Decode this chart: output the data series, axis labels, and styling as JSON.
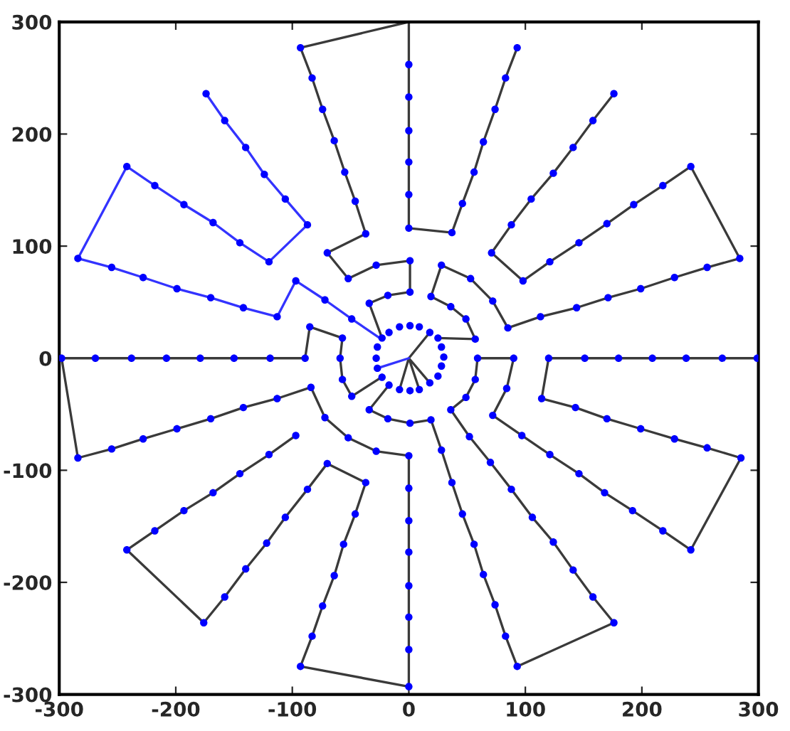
{
  "chart_data": {
    "type": "line",
    "xlim": [
      -300,
      300
    ],
    "ylim": [
      -300,
      300
    ],
    "xticks": [
      -300,
      -200,
      -100,
      0,
      100,
      200,
      300
    ],
    "yticks": [
      -300,
      -200,
      -100,
      0,
      100,
      200,
      300
    ],
    "grid": false,
    "line_style": "solid",
    "series": [
      {
        "type": "line",
        "color": "#3a3a3a",
        "marker": "none",
        "x": [
          93,
          83,
          74,
          64,
          56,
          46,
          37,
          0,
          0,
          0,
          0,
          0,
          0,
          0,
          -93,
          -83,
          -74,
          -64,
          -55,
          -46,
          -37,
          -70,
          -52,
          -28,
          1,
          1,
          -18,
          -34,
          -23
        ],
        "values": [
          277,
          250,
          222,
          193,
          166,
          138,
          112,
          116,
          146,
          175,
          203,
          233,
          262,
          300,
          277,
          250,
          222,
          194,
          166,
          140,
          111,
          94,
          71,
          83,
          87,
          59,
          56,
          49,
          18
        ]
      },
      {
        "type": "line",
        "color": "#3333ff",
        "marker": "none",
        "x": [
          -174,
          -158,
          -140,
          -124,
          -106,
          -87,
          -120,
          -145,
          -168,
          -193,
          -218,
          -242,
          -284,
          -255,
          -228,
          -199,
          -170,
          -142,
          -113,
          -97,
          -72,
          -49,
          -25
        ],
        "values": [
          236,
          212,
          188,
          164,
          142,
          119,
          86,
          103,
          121,
          137,
          154,
          171,
          89,
          81,
          72,
          62,
          54,
          45,
          37,
          69,
          52,
          35,
          18
        ]
      },
      {
        "type": "line",
        "color": "#3a3a3a",
        "marker": "none",
        "x": [
          176,
          158,
          141,
          124,
          105,
          88,
          71,
          98,
          121,
          146,
          170,
          193,
          218,
          242,
          284,
          256,
          228,
          199,
          171,
          144,
          113,
          85,
          72,
          53,
          28,
          19,
          36,
          49,
          57,
          25
        ],
        "values": [
          236,
          212,
          188,
          165,
          142,
          119,
          94,
          69,
          86,
          103,
          120,
          137,
          154,
          171,
          89,
          81,
          72,
          62,
          54,
          45,
          37,
          27,
          51,
          71,
          83,
          55,
          46,
          35,
          17,
          18
        ]
      },
      {
        "type": "line",
        "color": "#3a3a3a",
        "marker": "none",
        "x": [
          299,
          269,
          238,
          209,
          180,
          151,
          120,
          114,
          143,
          170,
          199,
          228,
          256,
          285,
          242,
          218,
          192,
          168,
          146,
          121,
          97,
          72,
          84,
          90,
          59,
          57,
          49,
          36,
          52,
          70,
          88,
          106,
          124,
          141,
          158,
          176,
          93,
          83,
          74,
          64,
          56,
          46,
          37,
          28,
          19,
          1,
          -18,
          -34,
          -17
        ],
        "values": [
          0,
          0,
          0,
          0,
          0,
          0,
          0,
          -36,
          -44,
          -54,
          -63,
          -72,
          -80,
          -89,
          -171,
          -154,
          -136,
          -120,
          -103,
          -86,
          -69,
          -51,
          -27,
          0,
          0,
          -19,
          -35,
          -46,
          -70,
          -93,
          -117,
          -142,
          -164,
          -189,
          -213,
          -236,
          -275,
          -248,
          -220,
          -193,
          -166,
          -139,
          -111,
          -82,
          -55,
          -58,
          -54,
          -46,
          -24
        ]
      },
      {
        "type": "line",
        "color": "#3a3a3a",
        "marker": "none",
        "x": [
          -97,
          -120,
          -145,
          -168,
          -193,
          -218,
          -242,
          -176,
          -158,
          -140,
          -122,
          -106,
          -87,
          -70,
          -37,
          -46,
          -56,
          -64,
          -74,
          -83,
          -93,
          0,
          0,
          0,
          0,
          0,
          0,
          0,
          0,
          -28,
          -52,
          -72,
          -84,
          -113,
          -142,
          -170,
          -199,
          -228,
          -255,
          -284,
          -298,
          -269,
          -238,
          -208,
          -179,
          -150,
          -119,
          -89,
          -85,
          -57,
          -59,
          -57,
          -49,
          -25
        ],
        "values": [
          -69,
          -86,
          -103,
          -120,
          -136,
          -154,
          -171,
          -236,
          -213,
          -188,
          -165,
          -142,
          -117,
          -94,
          -111,
          -139,
          -166,
          -194,
          -221,
          -248,
          -275,
          -293,
          -260,
          -231,
          -203,
          -173,
          -145,
          -116,
          -87,
          -83,
          -71,
          -53,
          -26,
          -36,
          -44,
          -54,
          -63,
          -72,
          -81,
          -89,
          0,
          0,
          0,
          0,
          0,
          0,
          0,
          0,
          28,
          18,
          0,
          -19,
          -34,
          -18
        ]
      },
      {
        "type": "line",
        "color": "#3a3a3a",
        "marker": "none",
        "x": [
          18,
          0,
          -8,
          0,
          9,
          0,
          18
        ],
        "values": [
          23,
          0,
          -28,
          0,
          -28,
          0,
          -22
        ]
      },
      {
        "type": "line",
        "color": "#3333ff",
        "marker": "none",
        "x": [
          0,
          -27
        ],
        "values": [
          0,
          -9
        ]
      },
      {
        "type": "scatter",
        "color": "#0000ff",
        "marker": "circle",
        "x": [
          93,
          83,
          74,
          64,
          56,
          46,
          37,
          0,
          0,
          0,
          0,
          0,
          0,
          -93,
          -83,
          -74,
          -64,
          -55,
          -46,
          -37,
          -70,
          -52,
          -28,
          1,
          1,
          -18,
          -34,
          -174,
          -158,
          -140,
          -124,
          -106,
          -87,
          -120,
          -145,
          -168,
          -193,
          -218,
          -242,
          -284,
          -255,
          -228,
          -199,
          -170,
          -142,
          -113,
          -97,
          -72,
          -49,
          176,
          158,
          141,
          124,
          105,
          88,
          71,
          98,
          121,
          146,
          170,
          193,
          218,
          242,
          284,
          256,
          228,
          199,
          171,
          144,
          113,
          85,
          72,
          53,
          28,
          19,
          36,
          49,
          57,
          299,
          269,
          238,
          209,
          180,
          151,
          120,
          114,
          143,
          170,
          199,
          228,
          256,
          285,
          242,
          218,
          192,
          168,
          146,
          121,
          97,
          72,
          84,
          90,
          59,
          57,
          49,
          36,
          52,
          70,
          88,
          106,
          124,
          141,
          158,
          176,
          93,
          83,
          74,
          64,
          56,
          46,
          37,
          28,
          19,
          1,
          -18,
          -34,
          -97,
          -120,
          -145,
          -168,
          -193,
          -218,
          -242,
          -176,
          -158,
          -140,
          -122,
          -106,
          -87,
          -70,
          -37,
          -46,
          -56,
          -64,
          -74,
          -83,
          -93,
          0,
          0,
          0,
          0,
          0,
          0,
          0,
          0,
          -28,
          -52,
          -72,
          -84,
          -113,
          -142,
          -170,
          -199,
          -228,
          -255,
          -284,
          -298,
          -269,
          -238,
          -208,
          -179,
          -150,
          -119,
          -89,
          -85,
          -57,
          -59,
          -57,
          -49,
          -23,
          -17,
          -8,
          1,
          9,
          18,
          25,
          28,
          30,
          28,
          25,
          18,
          9,
          1,
          -8,
          -17,
          -23,
          -27,
          -28,
          -27
        ],
        "values": [
          277,
          250,
          222,
          193,
          166,
          138,
          112,
          116,
          146,
          175,
          203,
          233,
          262,
          277,
          250,
          222,
          194,
          166,
          140,
          111,
          94,
          71,
          83,
          87,
          59,
          56,
          49,
          236,
          212,
          188,
          164,
          142,
          119,
          86,
          103,
          121,
          137,
          154,
          171,
          89,
          81,
          72,
          62,
          54,
          45,
          37,
          69,
          52,
          35,
          236,
          212,
          188,
          165,
          142,
          119,
          94,
          69,
          86,
          103,
          120,
          137,
          154,
          171,
          89,
          81,
          72,
          62,
          54,
          45,
          37,
          27,
          51,
          71,
          83,
          55,
          46,
          35,
          17,
          0,
          0,
          0,
          0,
          0,
          0,
          0,
          -36,
          -44,
          -54,
          -63,
          -72,
          -80,
          -89,
          -171,
          -154,
          -136,
          -120,
          -103,
          -86,
          -69,
          -51,
          -27,
          0,
          0,
          -19,
          -35,
          -46,
          -70,
          -93,
          -117,
          -142,
          -164,
          -189,
          -213,
          -236,
          -275,
          -248,
          -220,
          -193,
          -166,
          -139,
          -111,
          -82,
          -55,
          -58,
          -54,
          -46,
          -69,
          -86,
          -103,
          -120,
          -136,
          -154,
          -171,
          -236,
          -213,
          -188,
          -165,
          -142,
          -117,
          -94,
          -111,
          -139,
          -166,
          -194,
          -221,
          -248,
          -275,
          -293,
          -260,
          -231,
          -203,
          -173,
          -145,
          -116,
          -87,
          -83,
          -71,
          -53,
          -26,
          -36,
          -44,
          -54,
          -63,
          -72,
          -81,
          -89,
          0,
          0,
          0,
          0,
          0,
          0,
          0,
          0,
          28,
          18,
          0,
          -19,
          -34,
          18,
          23,
          28,
          29,
          28,
          23,
          18,
          10,
          1,
          -7,
          -16,
          -22,
          -28,
          -29,
          -28,
          -24,
          -17,
          -9,
          0,
          10
        ]
      }
    ]
  }
}
